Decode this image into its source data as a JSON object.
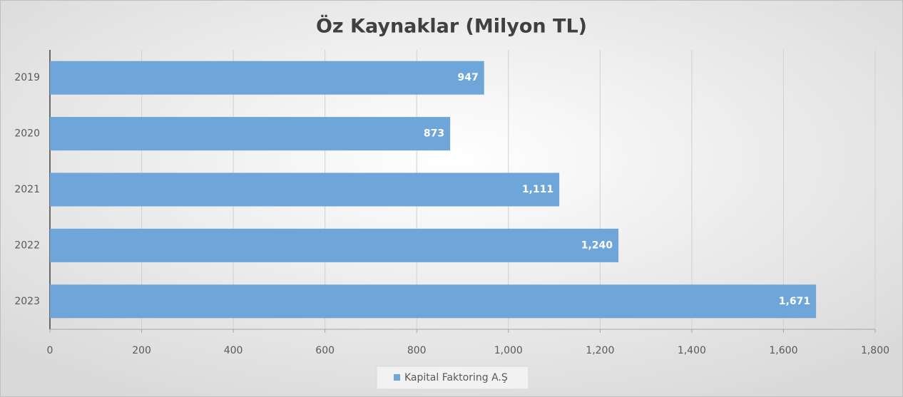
{
  "chart_data": {
    "type": "bar",
    "orientation": "horizontal",
    "title": "Öz Kaynaklar (Milyon TL)",
    "categories": [
      "2019",
      "2020",
      "2021",
      "2022",
      "2023"
    ],
    "series": [
      {
        "name": "Kapital Faktoring A.Ş",
        "color": "#6fa6da",
        "values": [
          947,
          873,
          1111,
          1240,
          1671
        ],
        "value_labels": [
          "947",
          "873",
          "1,111",
          "1,240",
          "1,671"
        ]
      }
    ],
    "xlim": [
      0,
      1800
    ],
    "xticks": [
      0,
      200,
      400,
      600,
      800,
      {
        "value": 1000,
        "label": "1,000"
      },
      {
        "value": 1200,
        "label": "1,200"
      },
      {
        "value": 1400,
        "label": "1,400"
      },
      {
        "value": 1600,
        "label": "1,600"
      },
      {
        "value": 1800,
        "label": "1,800"
      }
    ],
    "grid": true,
    "legend": "bottom"
  }
}
